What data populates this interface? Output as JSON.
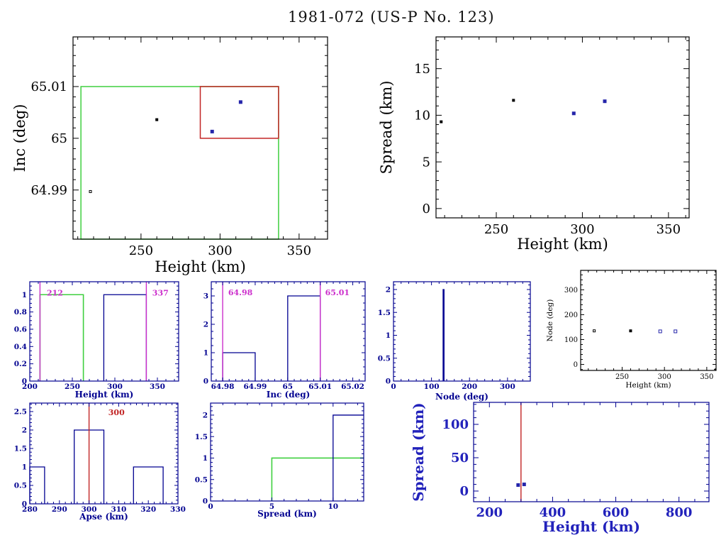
{
  "title": "1981-072 (US-P No. 123)",
  "colors": {
    "black": "#000000",
    "navy": "#000090",
    "blue_text": "#2222bb",
    "point_blue": "#2525aa",
    "green": "#3fcf3f",
    "red": "#c22525",
    "magenta": "#cc2fcc",
    "background": "#ffffff"
  },
  "chart_data": [
    {
      "id": "inc-vs-height",
      "type": "scatter",
      "xlabel": "Height (km)",
      "ylabel": "Inc (deg)",
      "xlim": [
        207,
        368
      ],
      "ylim": [
        64.9805,
        65.0196
      ],
      "xticks": {
        "values": [
          250,
          300,
          350
        ],
        "labels": [
          "250",
          "300",
          "350"
        ],
        "minor_step": 10
      },
      "yticks": {
        "values": [
          64.99,
          65,
          65.01
        ],
        "labels": [
          "64.99",
          "65",
          "65.01"
        ],
        "minor_step": 0.002
      },
      "axis_color": "black",
      "text_color": "black",
      "rects": [
        {
          "x0": 212,
          "x1": 337,
          "y0": 64.9805,
          "y1": 65.01,
          "color": "green"
        },
        {
          "x0": 287.5,
          "x1": 337,
          "y0": 65,
          "y1": 65.01,
          "color": "red"
        }
      ],
      "points": [
        {
          "x": 260,
          "y": 65.0036,
          "color": "black",
          "size": 3,
          "filled": true
        },
        {
          "x": 313,
          "y": 65.007,
          "color": "point_blue",
          "size": 4,
          "filled": true
        },
        {
          "x": 295,
          "y": 65.0013,
          "color": "point_blue",
          "size": 4,
          "filled": true
        },
        {
          "x": 218,
          "y": 64.9897,
          "color": "black",
          "size": 3,
          "filled": false
        }
      ]
    },
    {
      "id": "spread-vs-height",
      "type": "scatter",
      "xlabel": "Height (km)",
      "ylabel": "Spread (km)",
      "xlim": [
        215,
        362
      ],
      "ylim": [
        -1,
        18.4
      ],
      "xticks": {
        "values": [
          250,
          300,
          350
        ],
        "labels": [
          "250",
          "300",
          "350"
        ],
        "minor_step": 10
      },
      "yticks": {
        "values": [
          0,
          5,
          10,
          15
        ],
        "labels": [
          "0",
          "5",
          "10",
          "15"
        ],
        "minor_step": 1
      },
      "axis_color": "black",
      "text_color": "black",
      "points": [
        {
          "x": 218,
          "y": 9.3,
          "color": "black",
          "size": 3,
          "filled": true
        },
        {
          "x": 260,
          "y": 11.6,
          "color": "black",
          "size": 3,
          "filled": true
        },
        {
          "x": 295,
          "y": 10.2,
          "color": "point_blue",
          "size": 4,
          "filled": true
        },
        {
          "x": 313,
          "y": 11.5,
          "color": "point_blue",
          "size": 4,
          "filled": true
        }
      ]
    },
    {
      "id": "hist-height",
      "type": "bar",
      "xlabel": "Height (km)",
      "ylabel": "",
      "xlim": [
        200,
        375
      ],
      "ylim": [
        0,
        1.15
      ],
      "xticks": {
        "values": [
          200,
          250,
          300,
          350
        ],
        "labels": [
          "200",
          "250",
          "300",
          "350"
        ],
        "minor_step": 10
      },
      "yticks": {
        "values": [
          0,
          0.2,
          0.4,
          0.6,
          0.8,
          1
        ],
        "labels": [
          "0",
          "0.2",
          "0.4",
          "0.6",
          "0.8",
          "1"
        ],
        "minor_step": 0.05
      },
      "axis_color": "navy",
      "text_color": "navy",
      "bars": [
        {
          "x0": 212,
          "x1": 263,
          "height": 1,
          "color": "green"
        },
        {
          "x0": 287,
          "x1": 337,
          "height": 1,
          "color": "navy"
        }
      ],
      "vlines": [
        {
          "x": 212,
          "color": "magenta",
          "label": "212",
          "label_x": 220,
          "label_y": 0.99
        },
        {
          "x": 337,
          "color": "magenta",
          "label": "337",
          "label_x": 344,
          "label_y": 0.99
        }
      ]
    },
    {
      "id": "hist-inc",
      "type": "bar",
      "xlabel": "Inc (deg)",
      "ylabel": "",
      "xlim": [
        64.9765,
        65.0238
      ],
      "ylim": [
        0,
        3.5
      ],
      "xticks": {
        "values": [
          64.98,
          64.99,
          65,
          65.01,
          65.02
        ],
        "labels": [
          "64.98",
          "64.99",
          "65",
          "65.01",
          "65.02"
        ],
        "minor_step": 0.002
      },
      "yticks": {
        "values": [
          0,
          1,
          2,
          3
        ],
        "labels": [
          "0",
          "1",
          "2",
          "3"
        ],
        "minor_step": 0.25
      },
      "axis_color": "navy",
      "text_color": "navy",
      "bars": [
        {
          "x0": 64.98,
          "x1": 64.99,
          "height": 1,
          "color": "navy"
        },
        {
          "x0": 65,
          "x1": 65.01,
          "height": 3,
          "color": "navy"
        }
      ],
      "vlines": [
        {
          "x": 64.98,
          "color": "magenta",
          "label": "64.98",
          "label_x": 64.9817,
          "label_y": 3.03
        },
        {
          "x": 65.01,
          "color": "magenta",
          "label": "65.01",
          "label_x": 65.0115,
          "label_y": 3.03
        }
      ]
    },
    {
      "id": "hist-node",
      "type": "bar",
      "xlabel": "Node (deg)",
      "ylabel": "",
      "xlim": [
        0,
        360
      ],
      "ylim": [
        0,
        2.17
      ],
      "xticks": {
        "values": [
          0,
          100,
          200,
          300
        ],
        "labels": [
          "0",
          "100",
          "200",
          "300"
        ],
        "minor_step": 20
      },
      "yticks": {
        "values": [
          0,
          0.5,
          1,
          1.5,
          2
        ],
        "labels": [
          "0",
          "0.5",
          "1",
          "1.5",
          "2"
        ],
        "minor_step": 0.1
      },
      "axis_color": "navy",
      "text_color": "navy",
      "bars": [
        {
          "x0": 130.5,
          "x1": 133,
          "height": 2,
          "color": "navy"
        }
      ]
    },
    {
      "id": "node-vs-height",
      "type": "scatter",
      "xlabel": "Height (km)",
      "ylabel": "Node (deg)",
      "xlim": [
        201,
        361
      ],
      "ylim": [
        -24,
        378
      ],
      "xticks": {
        "values": [
          250,
          300,
          350
        ],
        "labels": [
          "250",
          "300",
          "350"
        ],
        "minor_step": 10
      },
      "yticks": {
        "values": [
          0,
          100,
          200,
          300
        ],
        "labels": [
          "0",
          "100",
          "200",
          "300"
        ],
        "minor_step": 20
      },
      "axis_color": "black",
      "text_color": "black",
      "points": [
        {
          "x": 217,
          "y": 135,
          "color": "black",
          "size": 3,
          "filled": false
        },
        {
          "x": 260,
          "y": 135,
          "color": "black",
          "size": 3,
          "filled": true
        },
        {
          "x": 295,
          "y": 133,
          "color": "point_blue",
          "size": 4,
          "filled": false
        },
        {
          "x": 313,
          "y": 133,
          "color": "point_blue",
          "size": 4,
          "filled": false
        }
      ]
    },
    {
      "id": "hist-apse",
      "type": "bar",
      "xlabel": "Apse (km)",
      "ylabel": "",
      "xlim": [
        280,
        330
      ],
      "ylim": [
        0,
        2.73
      ],
      "xticks": {
        "values": [
          280,
          290,
          300,
          310,
          320,
          330
        ],
        "labels": [
          "280",
          "290",
          "300",
          "310",
          "320",
          "330"
        ],
        "minor_step": 2
      },
      "yticks": {
        "values": [
          0,
          0.5,
          1,
          1.5,
          2,
          2.5
        ],
        "labels": [
          "0",
          "0.5",
          "1",
          "1.5",
          "2",
          "2.5"
        ],
        "minor_step": 0.1
      },
      "axis_color": "navy",
      "text_color": "navy",
      "bars": [
        {
          "x0": 280,
          "x1": 285,
          "height": 1,
          "color": "navy"
        },
        {
          "x0": 295,
          "x1": 305,
          "height": 2,
          "color": "navy"
        },
        {
          "x0": 315,
          "x1": 325,
          "height": 1,
          "color": "navy"
        }
      ],
      "vlines": [
        {
          "x": 300,
          "color": "red",
          "label": "300",
          "label_x": 306.5,
          "label_y": 2.4
        }
      ]
    },
    {
      "id": "hist-spread",
      "type": "bar",
      "xlabel": "Spread (km)",
      "ylabel": "",
      "xlim": [
        0,
        12.5
      ],
      "ylim": [
        0,
        2.28
      ],
      "xticks": {
        "values": [
          0,
          5,
          10
        ],
        "labels": [
          "0",
          "5",
          "10"
        ],
        "minor_step": 1
      },
      "yticks": {
        "values": [
          0,
          0.5,
          1,
          1.5,
          2
        ],
        "labels": [
          "0",
          "0.5",
          "1",
          "1.5",
          "2"
        ],
        "minor_step": 0.1
      },
      "axis_color": "navy",
      "text_color": "navy",
      "bars": [
        {
          "x0": 5,
          "x1": 12.5,
          "height": 1,
          "color": "green",
          "open_right": true
        },
        {
          "x0": 10,
          "x1": 12.5,
          "height": 2,
          "color": "navy",
          "open_right": true
        }
      ]
    },
    {
      "id": "spread-vs-height-wide",
      "type": "scatter",
      "xlabel": "Height (km)",
      "ylabel": "Spread (km)",
      "xlim": [
        150,
        895
      ],
      "ylim": [
        -16,
        133
      ],
      "xticks": {
        "values": [
          200,
          400,
          600,
          800
        ],
        "labels": [
          "200",
          "400",
          "600",
          "800"
        ],
        "minor_step": 50
      },
      "yticks": {
        "values": [
          0,
          50,
          100
        ],
        "labels": [
          "0",
          "50",
          "100"
        ],
        "minor_step": 10
      },
      "axis_color": "navy",
      "text_color": "blue_text",
      "vlines": [
        {
          "x": 300,
          "color": "red"
        }
      ],
      "points": [
        {
          "x": 291,
          "y": 9,
          "color": "point_blue",
          "size": 4,
          "filled": true
        },
        {
          "x": 310,
          "y": 10,
          "color": "point_blue",
          "size": 4,
          "filled": true
        }
      ]
    }
  ]
}
